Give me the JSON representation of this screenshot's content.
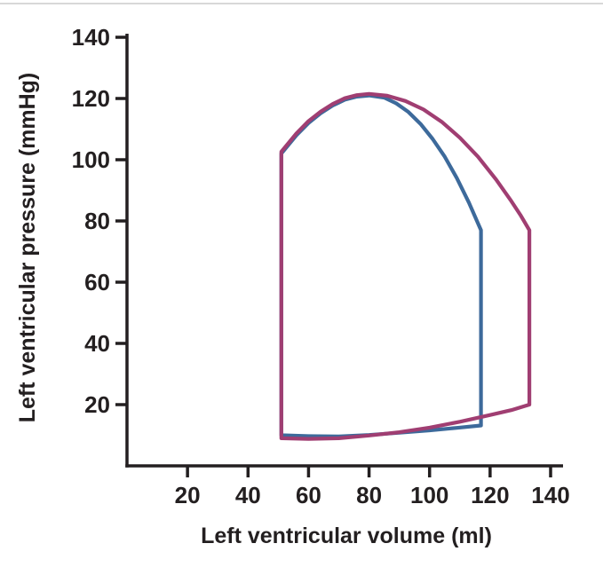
{
  "page": {
    "background": "#ffffff",
    "divider_color": "#d8d8d8"
  },
  "chart_data": {
    "type": "line",
    "title": "",
    "xlabel": "Left ventricular volume (ml)",
    "ylabel": "Left ventricular pressure (mmHg)",
    "xlim": [
      0,
      145
    ],
    "ylim": [
      0,
      145
    ],
    "xticks": [
      20,
      40,
      60,
      80,
      100,
      120,
      140
    ],
    "yticks": [
      20,
      40,
      60,
      80,
      100,
      120,
      140
    ],
    "grid": false,
    "legend": false,
    "axis_color": "#231f20",
    "tick_label_color": "#231f20",
    "line_width": 4.2,
    "series": [
      {
        "name": "blue-loop",
        "color": "#3d6a9b",
        "closed": true,
        "points": [
          [
            51,
            10
          ],
          [
            60,
            9.7
          ],
          [
            70,
            9.6
          ],
          [
            80,
            10.1
          ],
          [
            90,
            10.8
          ],
          [
            100,
            11.6
          ],
          [
            109,
            12.4
          ],
          [
            117,
            13.2
          ],
          [
            117,
            45
          ],
          [
            117,
            77
          ],
          [
            113,
            86
          ],
          [
            109,
            94
          ],
          [
            105,
            101
          ],
          [
            101,
            106.8
          ],
          [
            97,
            111.7
          ],
          [
            93,
            115.6
          ],
          [
            89,
            118.4
          ],
          [
            85,
            120.3
          ],
          [
            80,
            121
          ],
          [
            76,
            120.6
          ],
          [
            72,
            119.6
          ],
          [
            68,
            117.7
          ],
          [
            64,
            115.2
          ],
          [
            60,
            112
          ],
          [
            56,
            108
          ],
          [
            51,
            102
          ]
        ]
      },
      {
        "name": "magenta-loop",
        "color": "#a03e72",
        "closed": true,
        "points": [
          [
            51,
            9
          ],
          [
            60,
            8.8
          ],
          [
            70,
            9
          ],
          [
            80,
            9.9
          ],
          [
            90,
            11
          ],
          [
            100,
            12.5
          ],
          [
            110,
            14.4
          ],
          [
            120,
            16.6
          ],
          [
            127,
            18.2
          ],
          [
            133,
            20
          ],
          [
            133,
            48
          ],
          [
            133,
            77
          ],
          [
            130,
            82
          ],
          [
            127,
            86.5
          ],
          [
            122,
            93.5
          ],
          [
            116,
            101
          ],
          [
            110,
            107.2
          ],
          [
            104,
            112.4
          ],
          [
            98,
            116.4
          ],
          [
            92,
            119.2
          ],
          [
            86,
            120.9
          ],
          [
            80,
            121.5
          ],
          [
            76,
            121.1
          ],
          [
            72,
            120.1
          ],
          [
            68,
            118.2
          ],
          [
            64,
            115.7
          ],
          [
            60,
            112.6
          ],
          [
            56,
            108.6
          ],
          [
            51,
            102.6
          ]
        ]
      }
    ]
  }
}
